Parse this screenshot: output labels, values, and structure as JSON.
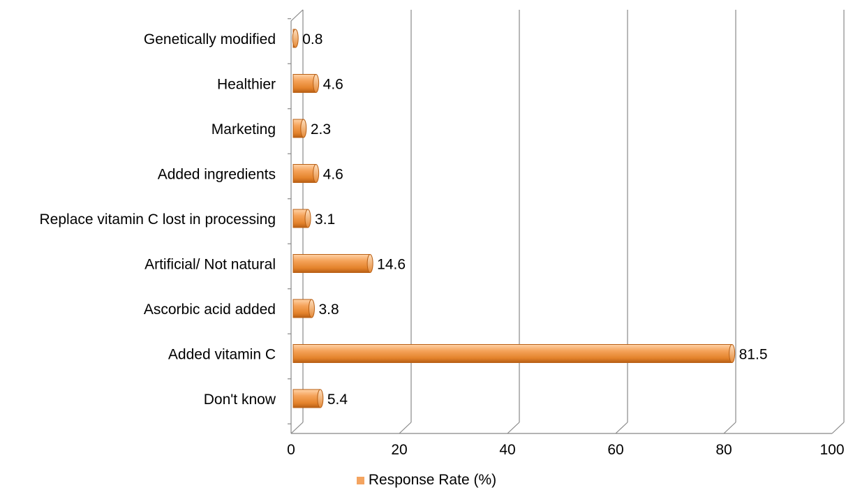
{
  "chart_data": {
    "type": "bar",
    "orientation": "horizontal",
    "style": "3d-cylinder",
    "categories": [
      "Genetically modified",
      "Healthier",
      "Marketing",
      "Added ingredients",
      "Replace vitamin C lost in processing",
      "Artificial/ Not natural",
      "Ascorbic acid added",
      "Added vitamin C",
      "Don't know"
    ],
    "series": [
      {
        "name": "Response Rate (%)",
        "values": [
          0.8,
          4.6,
          2.3,
          4.6,
          3.1,
          14.6,
          3.8,
          81.5,
          5.4
        ],
        "data_labels": [
          "0.8",
          "4.6",
          "2.3",
          "4.6",
          "3.1",
          "14.6",
          "3.8",
          "81.5",
          "5.4"
        ]
      }
    ],
    "xlim": [
      0,
      100
    ],
    "xticks": [
      "0",
      "20",
      "40",
      "60",
      "80",
      "100"
    ],
    "grid": true,
    "legend_position": "bottom",
    "title": "",
    "xlabel": "",
    "ylabel": ""
  },
  "colors": {
    "bar": "#f0923c",
    "bar_light": "#fbc48e",
    "bar_dark": "#b85f14",
    "grid": "#888888",
    "legend_swatch": "#f4a460"
  }
}
